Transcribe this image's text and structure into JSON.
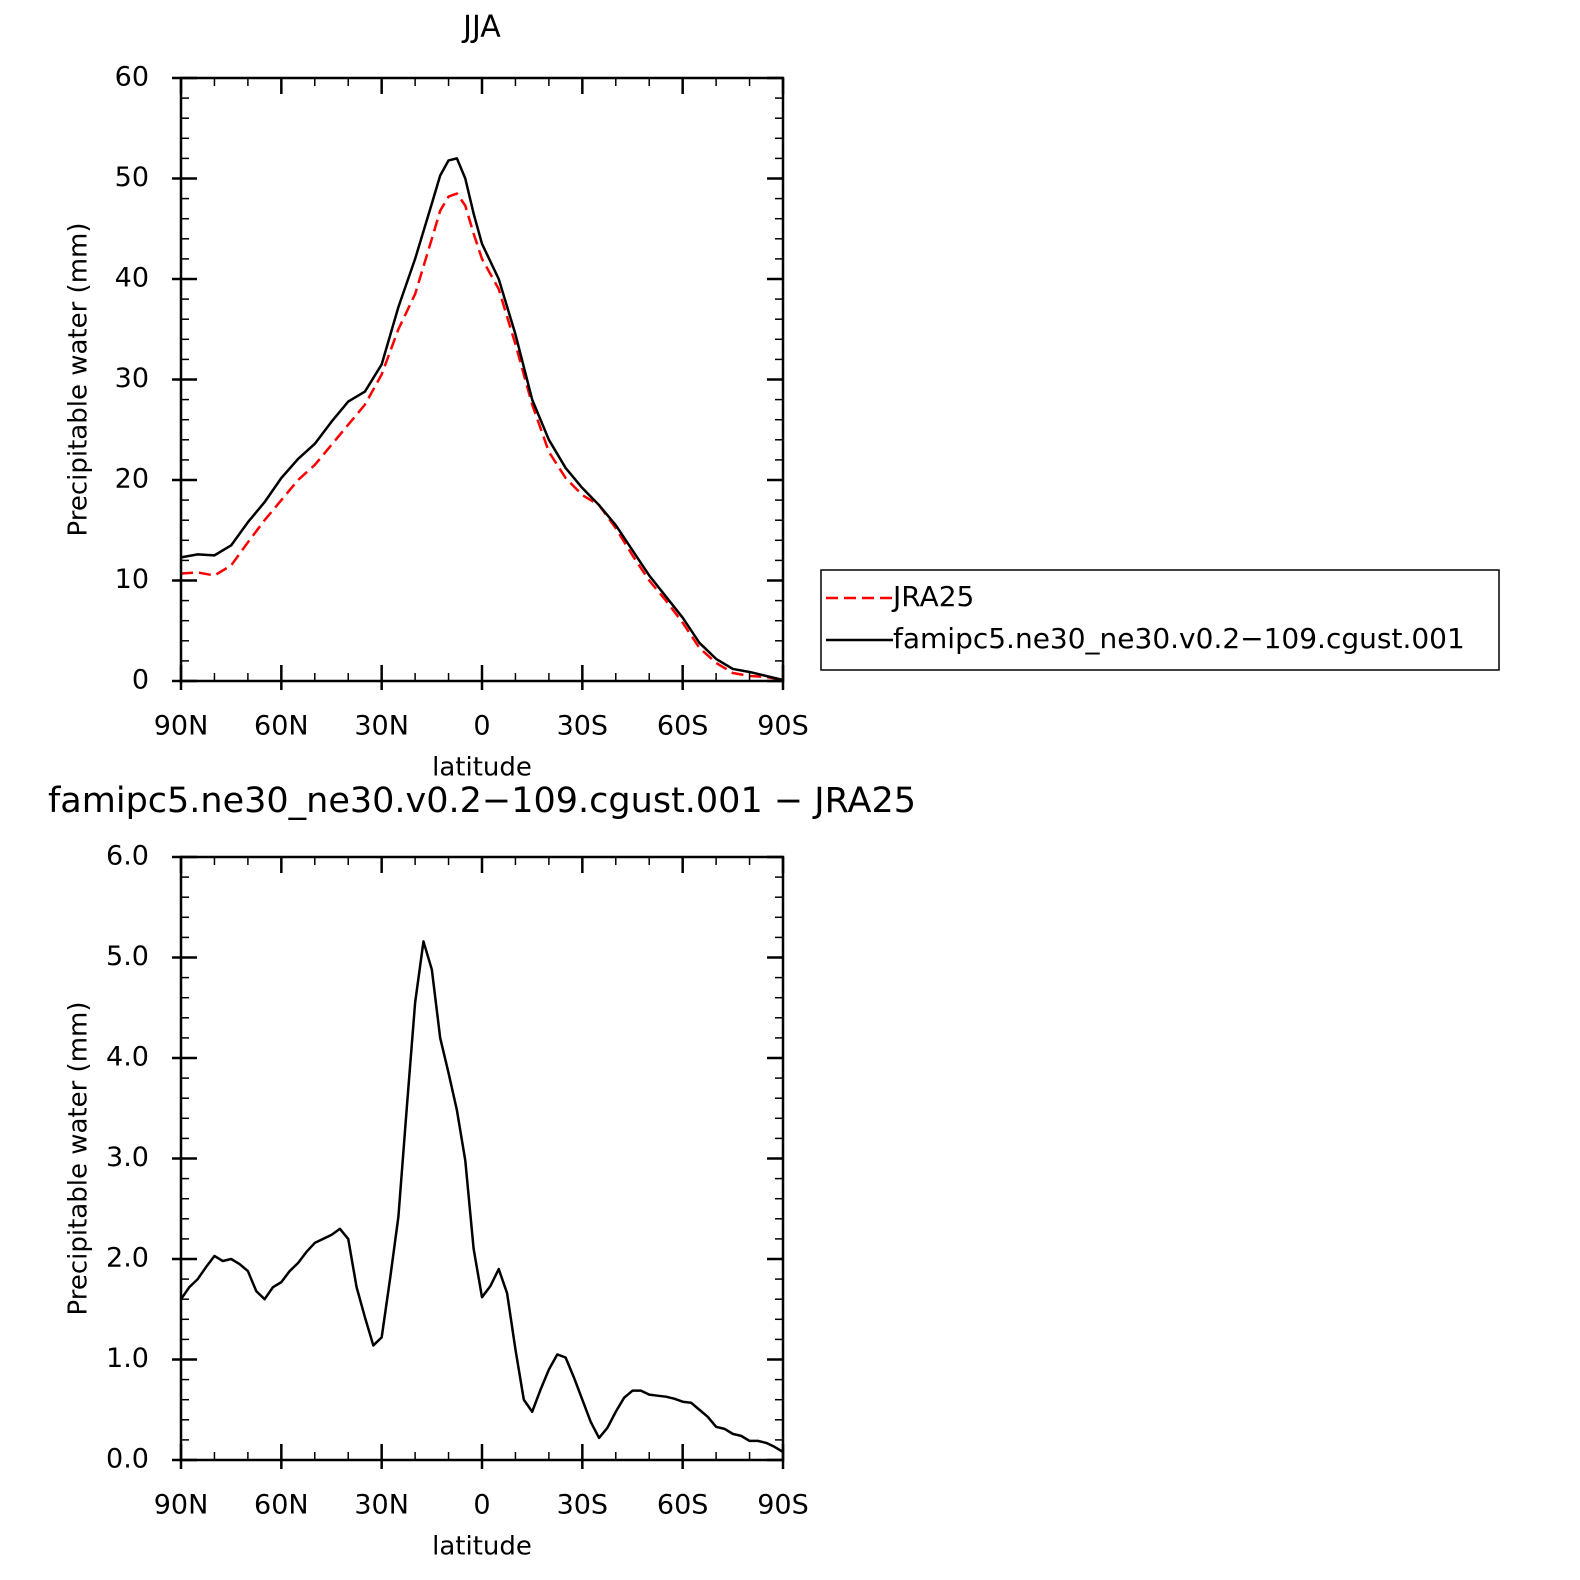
{
  "chart_data": [
    {
      "type": "line",
      "title": "JJA",
      "xlabel": "latitude",
      "ylabel": "Precipitable water (mm)",
      "x": [
        90,
        85,
        80,
        75,
        70,
        65,
        60,
        55,
        50,
        45,
        40,
        35,
        30,
        25,
        20,
        15,
        12.5,
        10,
        7.5,
        5,
        2.5,
        0,
        -5,
        -10,
        -15,
        -20,
        -25,
        -30,
        -35,
        -40,
        -45,
        -50,
        -55,
        -60,
        -65,
        -70,
        -75,
        -80,
        -85,
        -90
      ],
      "series": [
        {
          "name": "JRA25",
          "color": "#ff0000",
          "dash": true,
          "values": [
            10.7,
            10.8,
            10.5,
            11.5,
            13.8,
            16,
            18,
            20,
            21.5,
            23.5,
            25.5,
            27.5,
            30.5,
            35,
            38.5,
            44,
            46.8,
            48.2,
            48.5,
            47.3,
            44.5,
            42,
            39,
            33.5,
            27.5,
            22.8,
            20.2,
            18.5,
            17.5,
            15.2,
            12.5,
            10,
            8,
            5.8,
            3.3,
            1.8,
            0.8,
            0.5,
            0.4,
            0.1
          ]
        },
        {
          "name": "famipc5.ne30_ne30.v0.2−109.cgust.001",
          "color": "#000000",
          "dash": false,
          "values": [
            12.3,
            12.6,
            12.5,
            13.5,
            15.8,
            17.8,
            20.2,
            22.1,
            23.6,
            25.8,
            27.8,
            28.8,
            31.5,
            37.2,
            42,
            47.5,
            50.3,
            51.8,
            52,
            50,
            46.5,
            43.5,
            40,
            34.5,
            28,
            24,
            21.2,
            19.2,
            17.5,
            15.5,
            13,
            10.5,
            8.4,
            6.3,
            3.8,
            2.2,
            1.2,
            0.9,
            0.5,
            0.1
          ]
        }
      ],
      "xlim": [
        90,
        -90
      ],
      "xticks": [
        {
          "value": 90,
          "label": "90N"
        },
        {
          "value": 60,
          "label": "60N"
        },
        {
          "value": 30,
          "label": "30N"
        },
        0,
        {
          "value": -30,
          "label": "30S"
        },
        {
          "value": -60,
          "label": "60S"
        },
        {
          "value": -90,
          "label": "90S"
        }
      ],
      "ylim": [
        0,
        60
      ],
      "yticks": [
        0,
        10,
        20,
        30,
        40,
        50,
        60
      ],
      "legend": "right"
    },
    {
      "type": "line",
      "title": "famipc5.ne30_ne30.v0.2−109.cgust.001 − JRA25",
      "xlabel": "latitude",
      "ylabel": "Precipitable water (mm)",
      "x": [
        90,
        87.5,
        85,
        82.5,
        80,
        77.5,
        75,
        72.5,
        70,
        67.5,
        65,
        62.5,
        60,
        57.5,
        55,
        52.5,
        50,
        47.5,
        45,
        42.5,
        40,
        37.5,
        35,
        32.5,
        30,
        27.5,
        25,
        22.5,
        20,
        17.5,
        15,
        12.5,
        10,
        7.5,
        5,
        2.5,
        0,
        -2.5,
        -5,
        -7.5,
        -10,
        -12.5,
        -15,
        -17.5,
        -20,
        -22.5,
        -25,
        -27.5,
        -30,
        -32.5,
        -35,
        -37.5,
        -40,
        -42.5,
        -45,
        -47.5,
        -50,
        -52.5,
        -55,
        -57.5,
        -60,
        -62.5,
        -65,
        -67.5,
        -70,
        -72.5,
        -75,
        -77.5,
        -80,
        -82.5,
        -85,
        -87.5,
        -90
      ],
      "series": [
        {
          "color": "#000000",
          "dash": false,
          "values": [
            1.6,
            1.72,
            1.8,
            1.92,
            2.03,
            1.98,
            2.0,
            1.95,
            1.88,
            1.68,
            1.6,
            1.72,
            1.77,
            1.88,
            1.96,
            2.07,
            2.16,
            2.2,
            2.24,
            2.3,
            2.2,
            1.72,
            1.42,
            1.14,
            1.22,
            1.8,
            2.42,
            3.5,
            4.55,
            5.16,
            4.88,
            4.2,
            3.85,
            3.48,
            2.98,
            2.1,
            1.62,
            1.73,
            1.9,
            1.66,
            1.1,
            0.6,
            0.48,
            0.7,
            0.9,
            1.05,
            1.02,
            0.82,
            0.6,
            0.38,
            0.22,
            0.32,
            0.48,
            0.62,
            0.69,
            0.69,
            0.65,
            0.64,
            0.63,
            0.61,
            0.58,
            0.57,
            0.5,
            0.43,
            0.33,
            0.31,
            0.26,
            0.24,
            0.19,
            0.19,
            0.17,
            0.13,
            0.08
          ]
        }
      ],
      "xlim": [
        90,
        -90
      ],
      "xticks": [
        {
          "value": 90,
          "label": "90N"
        },
        {
          "value": 60,
          "label": "60N"
        },
        {
          "value": 30,
          "label": "30N"
        },
        0,
        {
          "value": -30,
          "label": "30S"
        },
        {
          "value": -60,
          "label": "60S"
        },
        {
          "value": -90,
          "label": "90S"
        }
      ],
      "ylim": [
        0,
        6
      ],
      "yticks": [
        {
          "value": 0,
          "label": "0.0"
        },
        {
          "value": 1,
          "label": "1.0"
        },
        {
          "value": 2,
          "label": "2.0"
        },
        {
          "value": 3,
          "label": "3.0"
        },
        {
          "value": 4,
          "label": "4.0"
        },
        {
          "value": 5,
          "label": "5.0"
        },
        {
          "value": 6,
          "label": "6.0"
        }
      ]
    }
  ]
}
